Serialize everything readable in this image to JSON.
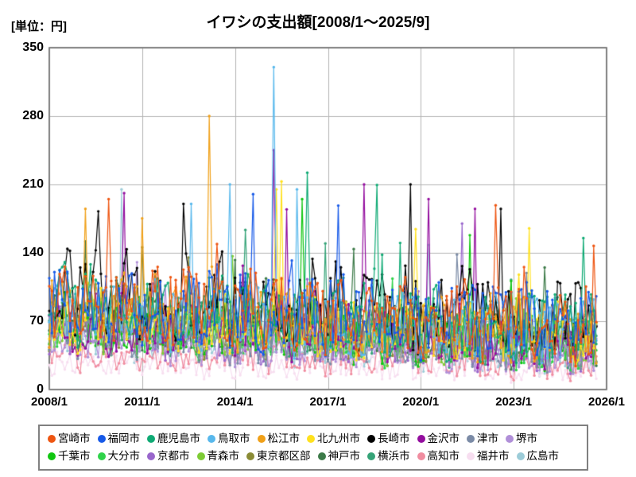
{
  "chart": {
    "unit_label": "[単位：円]",
    "title": "イワシの支出額[2008/1～2025/9]"
  },
  "chart_data": {
    "type": "line",
    "title": "イワシの支出額[2008/1～2025/9]",
    "unit": "円",
    "x_start": "2008/1",
    "x_end": "2025/9",
    "months_total": 213,
    "x_tick_labels": [
      "2008/1",
      "2011/1",
      "2014/1",
      "2017/1",
      "2020/1",
      "2023/1",
      "2026/1"
    ],
    "x_tick_month_index": [
      0,
      36,
      72,
      108,
      144,
      180,
      216
    ],
    "x_axis_months_span": 216,
    "y_ticks": [
      0,
      70,
      140,
      210,
      280,
      350
    ],
    "ylim": [
      0,
      350
    ],
    "grid": true,
    "legend_position": "bottom",
    "marker": "circle",
    "values_estimated": true,
    "series": [
      {
        "name": "宮崎市",
        "color": "#ee5511",
        "typical_mean": 75,
        "typical_spread": 38,
        "peaks": [
          [
            23,
            195
          ]
        ]
      },
      {
        "name": "福岡市",
        "color": "#1659e8",
        "typical_mean": 75,
        "typical_spread": 38,
        "peaks": [
          [
            79,
            200
          ]
        ]
      },
      {
        "name": "鹿児島市",
        "color": "#0faa74",
        "typical_mean": 72,
        "typical_spread": 36,
        "peaks": [
          [
            100,
            222
          ]
        ]
      },
      {
        "name": "鳥取市",
        "color": "#58b8ec",
        "typical_mean": 68,
        "typical_spread": 34,
        "peaks": [
          [
            87,
            330
          ],
          [
            70,
            210
          ],
          [
            96,
            205
          ],
          [
            55,
            190
          ]
        ]
      },
      {
        "name": "松江市",
        "color": "#f0a018",
        "typical_mean": 68,
        "typical_spread": 34,
        "peaks": [
          [
            62,
            280
          ],
          [
            14,
            185
          ]
        ]
      },
      {
        "name": "北九州市",
        "color": "#ffe11e",
        "typical_mean": 62,
        "typical_spread": 32,
        "peaks": [
          [
            90,
            213
          ],
          [
            88,
            205
          ],
          [
            186,
            165
          ]
        ]
      },
      {
        "name": "長崎市",
        "color": "#000000",
        "typical_mean": 85,
        "typical_spread": 42,
        "peaks": [
          [
            140,
            210
          ],
          [
            52,
            190
          ],
          [
            175,
            185
          ]
        ]
      },
      {
        "name": "金沢市",
        "color": "#930d9e",
        "typical_mean": 58,
        "typical_spread": 30,
        "peaks": [
          [
            87,
            245
          ],
          [
            122,
            210
          ],
          [
            147,
            195
          ],
          [
            165,
            185
          ]
        ]
      },
      {
        "name": "津市",
        "color": "#7b8ba6",
        "typical_mean": 48,
        "typical_spread": 24,
        "peaks": []
      },
      {
        "name": "堺市",
        "color": "#b08fd8",
        "typical_mean": 42,
        "typical_spread": 20,
        "peaks": []
      },
      {
        "name": "千葉市",
        "color": "#10c610",
        "typical_mean": 55,
        "typical_spread": 27,
        "peaks": [
          [
            98,
            195
          ]
        ]
      },
      {
        "name": "大分市",
        "color": "#2fd34a",
        "typical_mean": 52,
        "typical_spread": 26,
        "peaks": []
      },
      {
        "name": "京都市",
        "color": "#9966cc",
        "typical_mean": 48,
        "typical_spread": 24,
        "peaks": [
          [
            160,
            170
          ]
        ]
      },
      {
        "name": "青森市",
        "color": "#7ecc35",
        "typical_mean": 55,
        "typical_spread": 27,
        "peaks": []
      },
      {
        "name": "東京都区部",
        "color": "#8a8b35",
        "typical_mean": 55,
        "typical_spread": 27,
        "peaks": []
      },
      {
        "name": "神戸市",
        "color": "#3c7a48",
        "typical_mean": 58,
        "typical_spread": 28,
        "peaks": []
      },
      {
        "name": "横浜市",
        "color": "#35a377",
        "typical_mean": 60,
        "typical_spread": 30,
        "peaks": []
      },
      {
        "name": "高知市",
        "color": "#f08da0",
        "typical_mean": 30,
        "typical_spread": 16,
        "peaks": []
      },
      {
        "name": "福井市",
        "color": "#f7def0",
        "typical_mean": 22,
        "typical_spread": 12,
        "peaks": []
      },
      {
        "name": "広島市",
        "color": "#9cccd8",
        "typical_mean": 45,
        "typical_spread": 24,
        "peaks": [
          [
            28,
            205
          ]
        ]
      }
    ]
  }
}
